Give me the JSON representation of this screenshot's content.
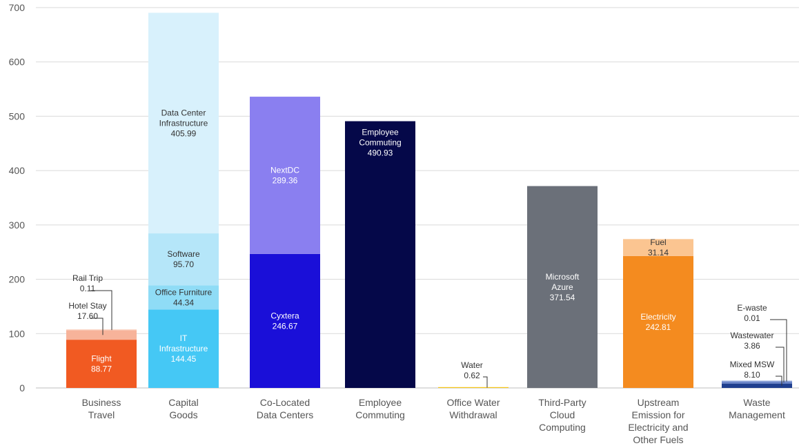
{
  "chart_data": {
    "type": "bar",
    "stacked": true,
    "title": "",
    "xlabel": "",
    "ylabel": "",
    "ylim": [
      0,
      700
    ],
    "yticks": [
      0,
      100,
      200,
      300,
      400,
      500,
      600,
      700
    ],
    "grid": true,
    "legend": "none",
    "categories": [
      {
        "label": [
          "Business",
          "Travel"
        ],
        "segments": [
          {
            "name": "Flight",
            "value": 88.77,
            "label": [
              "Flight",
              "88.77"
            ],
            "color": "#f15a22",
            "label_color": "#ffffff",
            "label_pos": "inside"
          },
          {
            "name": "Hotel Stay",
            "value": 17.6,
            "label": [
              "Hotel Stay",
              "17.60"
            ],
            "color": "#f7b39a",
            "label_color": "#333333",
            "label_pos": "callout"
          },
          {
            "name": "Rail Trip",
            "value": 0.11,
            "label": [
              "Rail Trip",
              "0.11"
            ],
            "color": "#fbd6c6",
            "label_color": "#333333",
            "label_pos": "callout"
          }
        ]
      },
      {
        "label": [
          "Capital",
          "Goods"
        ],
        "segments": [
          {
            "name": "IT Infrastructure",
            "value": 144.45,
            "label": [
              "IT",
              "Infrastructure",
              "144.45"
            ],
            "color": "#45c8f5",
            "label_color": "#ffffff",
            "label_pos": "inside"
          },
          {
            "name": "Office Furniture",
            "value": 44.34,
            "label": [
              "Office Furniture",
              "44.34"
            ],
            "color": "#8fdcf6",
            "label_color": "#333333",
            "label_pos": "inside"
          },
          {
            "name": "Software",
            "value": 95.7,
            "label": [
              "Software",
              "95.70"
            ],
            "color": "#b5e6f9",
            "label_color": "#333333",
            "label_pos": "inside"
          },
          {
            "name": "Data Center Infrastructure",
            "value": 405.99,
            "label": [
              "Data Center",
              "Infrastructure",
              "405.99"
            ],
            "color": "#d8f1fc",
            "label_color": "#333333",
            "label_pos": "inside"
          }
        ]
      },
      {
        "label": [
          "Co-Located",
          "Data Centers"
        ],
        "segments": [
          {
            "name": "Cyxtera",
            "value": 246.67,
            "label": [
              "Cyxtera",
              "246.67"
            ],
            "color": "#1a0fd8",
            "label_color": "#ffffff",
            "label_pos": "inside"
          },
          {
            "name": "NextDC",
            "value": 289.36,
            "label": [
              "NextDC",
              "289.36"
            ],
            "color": "#8a7ff0",
            "label_color": "#ffffff",
            "label_pos": "inside"
          }
        ]
      },
      {
        "label": [
          "Employee",
          "Commuting"
        ],
        "segments": [
          {
            "name": "Employee Commuting",
            "value": 490.93,
            "label": [
              "Employee",
              "Commuting",
              "490.93"
            ],
            "color": "#050849",
            "label_color": "#ffffff",
            "label_pos": "inside-top"
          }
        ]
      },
      {
        "label": [
          "Office Water",
          "Withdrawal"
        ],
        "segments": [
          {
            "name": "Water",
            "value": 0.62,
            "label": [
              "Water",
              "0.62"
            ],
            "color": "#f5c518",
            "label_color": "#333333",
            "label_pos": "callout"
          }
        ]
      },
      {
        "label": [
          "Third-Party",
          "Cloud",
          "Computing"
        ],
        "segments": [
          {
            "name": "Microsoft Azure",
            "value": 371.54,
            "label": [
              "Microsoft",
              "Azure",
              "371.54"
            ],
            "color": "#6b7079",
            "label_color": "#ffffff",
            "label_pos": "inside"
          }
        ]
      },
      {
        "label": [
          "Upstream",
          "Emission for",
          "Electricity and",
          "Other Fuels"
        ],
        "segments": [
          {
            "name": "Electricity",
            "value": 242.81,
            "label": [
              "Electricity",
              "242.81"
            ],
            "color": "#f48b1f",
            "label_color": "#ffffff",
            "label_pos": "inside"
          },
          {
            "name": "Fuel",
            "value": 31.14,
            "label": [
              "Fuel",
              "31.14"
            ],
            "color": "#fbc591",
            "label_color": "#333333",
            "label_pos": "inside"
          }
        ]
      },
      {
        "label": [
          "Waste",
          "Management"
        ],
        "segments": [
          {
            "name": "Mixed MSW",
            "value": 8.1,
            "label": [
              "Mixed MSW",
              "8.10"
            ],
            "color": "#1f3f8f",
            "label_color": "#333333",
            "label_pos": "callout"
          },
          {
            "name": "Wastewater",
            "value": 3.86,
            "label": [
              "Wastewater",
              "3.86"
            ],
            "color": "#6b86c9",
            "label_color": "#333333",
            "label_pos": "callout"
          },
          {
            "name": "E-waste",
            "value": 0.01,
            "label": [
              "E-waste",
              "0.01"
            ],
            "color": "#9fb2e0",
            "label_color": "#333333",
            "label_pos": "callout"
          }
        ]
      }
    ]
  }
}
